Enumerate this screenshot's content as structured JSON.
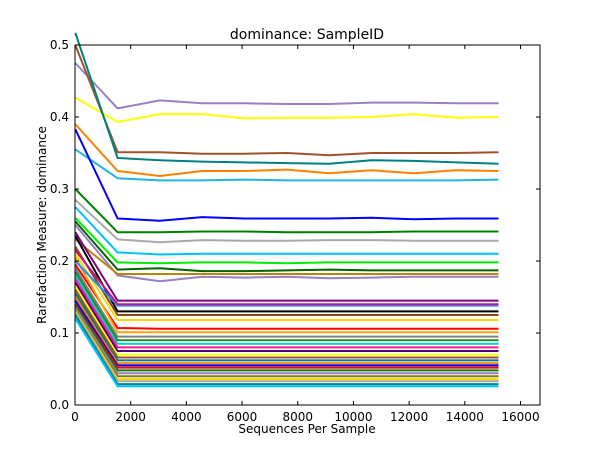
{
  "chart_data": {
    "type": "line",
    "title": "dominance: SampleID",
    "xlabel": "Sequences Per Sample",
    "ylabel": "Rarefaction Measure: dominance",
    "xlim": [
      0,
      16700
    ],
    "ylim": [
      0.0,
      0.5
    ],
    "x_ticks": [
      0,
      2000,
      4000,
      6000,
      8000,
      10000,
      12000,
      14000,
      16000
    ],
    "y_ticks": [
      0.0,
      0.1,
      0.2,
      0.3,
      0.4,
      0.5
    ],
    "grid": false,
    "legend": "none",
    "x": [
      10,
      1530,
      3050,
      4570,
      6090,
      7610,
      9130,
      10650,
      12170,
      13690,
      15210
    ],
    "series": [
      {
        "color": "#9b7fc2",
        "values": [
          0.475,
          0.412,
          0.423,
          0.419,
          0.419,
          0.418,
          0.418,
          0.42,
          0.42,
          0.419,
          0.419
        ]
      },
      {
        "color": "#ffff00",
        "values": [
          0.427,
          0.393,
          0.404,
          0.404,
          0.398,
          0.399,
          0.399,
          0.4,
          0.404,
          0.399,
          0.4
        ]
      },
      {
        "color": "#a0522d",
        "values": [
          0.5,
          0.351,
          0.351,
          0.349,
          0.349,
          0.35,
          0.347,
          0.35,
          0.35,
          0.35,
          0.351
        ]
      },
      {
        "color": "#008080",
        "values": [
          0.517,
          0.343,
          0.34,
          0.338,
          0.337,
          0.336,
          0.335,
          0.34,
          0.339,
          0.337,
          0.335
        ]
      },
      {
        "color": "#ff7f00",
        "values": [
          0.39,
          0.325,
          0.318,
          0.325,
          0.325,
          0.327,
          0.322,
          0.326,
          0.322,
          0.326,
          0.325
        ]
      },
      {
        "color": "#1fb4e6",
        "values": [
          0.355,
          0.315,
          0.312,
          0.312,
          0.313,
          0.312,
          0.312,
          0.312,
          0.312,
          0.312,
          0.313
        ]
      },
      {
        "color": "#0000ff",
        "values": [
          0.383,
          0.259,
          0.256,
          0.261,
          0.259,
          0.259,
          0.259,
          0.26,
          0.258,
          0.259,
          0.259
        ]
      },
      {
        "color": "#008000",
        "values": [
          0.3,
          0.24,
          0.24,
          0.241,
          0.241,
          0.24,
          0.24,
          0.24,
          0.241,
          0.241,
          0.241
        ]
      },
      {
        "color": "#a9a9a9",
        "values": [
          0.285,
          0.23,
          0.226,
          0.229,
          0.228,
          0.228,
          0.229,
          0.229,
          0.228,
          0.228,
          0.228
        ]
      },
      {
        "color": "#00bfff",
        "values": [
          0.275,
          0.212,
          0.209,
          0.21,
          0.21,
          0.21,
          0.21,
          0.21,
          0.21,
          0.21,
          0.21
        ]
      },
      {
        "color": "#00ee00",
        "values": [
          0.26,
          0.198,
          0.197,
          0.198,
          0.198,
          0.197,
          0.198,
          0.198,
          0.198,
          0.198,
          0.198
        ]
      },
      {
        "color": "#9b7fc2",
        "values": [
          0.25,
          0.18,
          0.172,
          0.178,
          0.177,
          0.178,
          0.176,
          0.177,
          0.178,
          0.178,
          0.178
        ]
      },
      {
        "color": "#006400",
        "values": [
          0.255,
          0.188,
          0.19,
          0.186,
          0.186,
          0.187,
          0.188,
          0.187,
          0.187,
          0.187,
          0.187
        ]
      },
      {
        "color": "#b8860b",
        "values": [
          0.23,
          0.182,
          0.182,
          0.182,
          0.182,
          0.182,
          0.182,
          0.182,
          0.182,
          0.182,
          0.182
        ]
      },
      {
        "color": "#800080",
        "values": [
          0.24,
          0.145,
          0.145,
          0.145,
          0.145,
          0.145,
          0.145,
          0.145,
          0.145,
          0.145,
          0.145
        ]
      },
      {
        "color": "#8b4513",
        "values": [
          0.22,
          0.125,
          0.125,
          0.125,
          0.125,
          0.125,
          0.125,
          0.125,
          0.125,
          0.125,
          0.125
        ]
      },
      {
        "color": "#ffd700",
        "values": [
          0.21,
          0.118,
          0.118,
          0.118,
          0.118,
          0.118,
          0.118,
          0.118,
          0.118,
          0.118,
          0.118
        ]
      },
      {
        "color": "#000000",
        "values": [
          0.235,
          0.13,
          0.13,
          0.13,
          0.13,
          0.13,
          0.13,
          0.13,
          0.13,
          0.13,
          0.13
        ]
      },
      {
        "color": "#ff0000",
        "values": [
          0.195,
          0.107,
          0.106,
          0.106,
          0.106,
          0.106,
          0.106,
          0.106,
          0.106,
          0.106,
          0.106
        ]
      },
      {
        "color": "#ffa500",
        "values": [
          0.205,
          0.101,
          0.101,
          0.101,
          0.101,
          0.101,
          0.101,
          0.101,
          0.101,
          0.101,
          0.101
        ]
      },
      {
        "color": "#1e90ff",
        "values": [
          0.2,
          0.138,
          0.138,
          0.138,
          0.138,
          0.138,
          0.138,
          0.138,
          0.138,
          0.138,
          0.138
        ]
      },
      {
        "color": "#c71585",
        "values": [
          0.215,
          0.14,
          0.14,
          0.14,
          0.14,
          0.14,
          0.14,
          0.14,
          0.14,
          0.14,
          0.14
        ]
      },
      {
        "color": "#808080",
        "values": [
          0.19,
          0.095,
          0.095,
          0.095,
          0.095,
          0.095,
          0.095,
          0.095,
          0.095,
          0.095,
          0.095
        ]
      },
      {
        "color": "#228b22",
        "values": [
          0.185,
          0.09,
          0.09,
          0.09,
          0.09,
          0.09,
          0.09,
          0.09,
          0.09,
          0.09,
          0.09
        ]
      },
      {
        "color": "#00ced1",
        "values": [
          0.18,
          0.085,
          0.085,
          0.085,
          0.085,
          0.085,
          0.085,
          0.085,
          0.085,
          0.085,
          0.085
        ]
      },
      {
        "color": "#ff1493",
        "values": [
          0.175,
          0.08,
          0.08,
          0.08,
          0.08,
          0.08,
          0.08,
          0.08,
          0.08,
          0.08,
          0.08
        ]
      },
      {
        "color": "#4b0082",
        "values": [
          0.17,
          0.075,
          0.075,
          0.075,
          0.075,
          0.075,
          0.075,
          0.075,
          0.075,
          0.075,
          0.075
        ]
      },
      {
        "color": "#ffff00",
        "values": [
          0.165,
          0.07,
          0.07,
          0.07,
          0.07,
          0.07,
          0.07,
          0.07,
          0.07,
          0.07,
          0.07
        ]
      },
      {
        "color": "#a0522d",
        "values": [
          0.16,
          0.066,
          0.066,
          0.066,
          0.066,
          0.066,
          0.066,
          0.066,
          0.066,
          0.066,
          0.066
        ]
      },
      {
        "color": "#008080",
        "values": [
          0.155,
          0.062,
          0.062,
          0.062,
          0.062,
          0.062,
          0.062,
          0.062,
          0.062,
          0.062,
          0.062
        ]
      },
      {
        "color": "#ff7f00",
        "values": [
          0.15,
          0.058,
          0.058,
          0.058,
          0.058,
          0.058,
          0.058,
          0.058,
          0.058,
          0.058,
          0.058
        ]
      },
      {
        "color": "#0000ff",
        "values": [
          0.145,
          0.055,
          0.055,
          0.055,
          0.055,
          0.055,
          0.055,
          0.055,
          0.055,
          0.055,
          0.055
        ]
      },
      {
        "color": "#ff0000",
        "values": [
          0.14,
          0.052,
          0.052,
          0.052,
          0.052,
          0.052,
          0.052,
          0.052,
          0.052,
          0.052,
          0.052
        ]
      },
      {
        "color": "#008000",
        "values": [
          0.138,
          0.048,
          0.048,
          0.048,
          0.048,
          0.048,
          0.048,
          0.048,
          0.048,
          0.048,
          0.048
        ]
      },
      {
        "color": "#9b7fc2",
        "values": [
          0.135,
          0.044,
          0.044,
          0.044,
          0.044,
          0.044,
          0.044,
          0.044,
          0.044,
          0.044,
          0.044
        ]
      },
      {
        "color": "#808000",
        "values": [
          0.132,
          0.04,
          0.04,
          0.04,
          0.04,
          0.04,
          0.04,
          0.04,
          0.04,
          0.04,
          0.04
        ]
      },
      {
        "color": "#ffd700",
        "values": [
          0.13,
          0.036,
          0.036,
          0.036,
          0.036,
          0.036,
          0.036,
          0.036,
          0.036,
          0.036,
          0.036
        ]
      },
      {
        "color": "#a9a9a9",
        "values": [
          0.128,
          0.033,
          0.033,
          0.033,
          0.033,
          0.033,
          0.033,
          0.033,
          0.033,
          0.033,
          0.033
        ]
      },
      {
        "color": "#008b8b",
        "values": [
          0.125,
          0.029,
          0.029,
          0.029,
          0.029,
          0.029,
          0.029,
          0.029,
          0.029,
          0.029,
          0.029
        ]
      },
      {
        "color": "#00bfff",
        "values": [
          0.12,
          0.026,
          0.026,
          0.026,
          0.026,
          0.026,
          0.026,
          0.026,
          0.026,
          0.026,
          0.026
        ]
      }
    ]
  }
}
